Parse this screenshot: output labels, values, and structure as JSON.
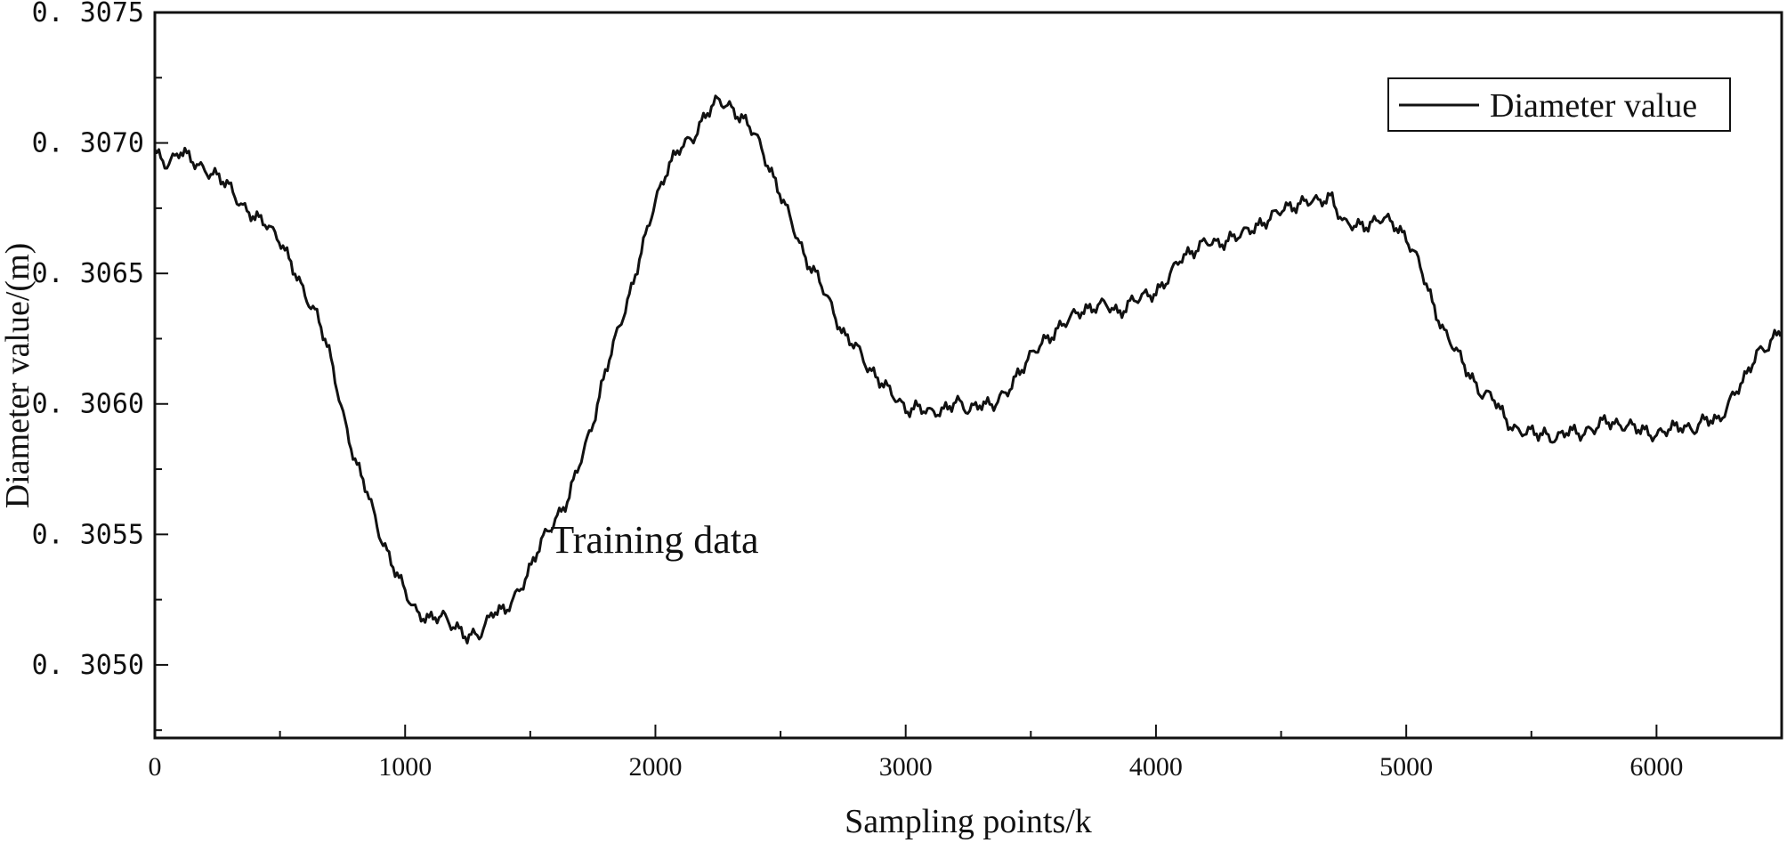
{
  "chart_data": {
    "type": "line",
    "title": "",
    "xlabel": "Sampling points/k",
    "ylabel": "Diameter value/(m)",
    "xlim": [
      0,
      6500
    ],
    "ylim": [
      0.30472,
      0.3075
    ],
    "x_ticks": [
      0,
      1000,
      2000,
      3000,
      4000,
      5000,
      6000
    ],
    "x_tick_labels": [
      "0",
      "1000",
      "2000",
      "3000",
      "4000",
      "5000",
      "6000"
    ],
    "y_ticks": [
      0.305,
      0.3055,
      0.306,
      0.3065,
      0.307,
      0.3075
    ],
    "y_tick_labels": [
      "0. 3050",
      "0. 3055",
      "0. 3060",
      "0. 3065",
      "0. 3070",
      "0. 3075"
    ],
    "legend": {
      "position": "top-right",
      "entries": [
        "Diameter value"
      ]
    },
    "annotations": [
      {
        "text": "Training data",
        "x": 1580,
        "y": 0.30543
      }
    ],
    "grid": false,
    "series": [
      {
        "name": "Diameter value",
        "color": "#111111",
        "x": [
          0,
          50,
          100,
          150,
          200,
          250,
          300,
          350,
          400,
          450,
          500,
          550,
          600,
          650,
          700,
          750,
          800,
          850,
          900,
          950,
          1000,
          1050,
          1100,
          1150,
          1200,
          1250,
          1300,
          1350,
          1400,
          1450,
          1500,
          1550,
          1600,
          1650,
          1700,
          1750,
          1800,
          1850,
          1900,
          1950,
          2000,
          2050,
          2100,
          2150,
          2200,
          2250,
          2300,
          2350,
          2400,
          2450,
          2500,
          2550,
          2600,
          2650,
          2700,
          2750,
          2800,
          2850,
          2900,
          2950,
          3000,
          3050,
          3100,
          3150,
          3200,
          3250,
          3300,
          3350,
          3400,
          3450,
          3500,
          3550,
          3600,
          3650,
          3700,
          3750,
          3800,
          3850,
          3900,
          3950,
          4000,
          4050,
          4100,
          4150,
          4200,
          4250,
          4300,
          4350,
          4400,
          4450,
          4500,
          4550,
          4600,
          4650,
          4700,
          4750,
          4800,
          4850,
          4900,
          4950,
          5000,
          5050,
          5100,
          5150,
          5200,
          5250,
          5300,
          5350,
          5400,
          5450,
          5500,
          5550,
          5600,
          5650,
          5700,
          5750,
          5800,
          5850,
          5900,
          5950,
          6000,
          6050,
          6100,
          6150,
          6200,
          6250,
          6300,
          6350,
          6400,
          6450,
          6500
        ],
        "y": [
          0.30696,
          0.30692,
          0.30697,
          0.30693,
          0.3069,
          0.30687,
          0.30683,
          0.30676,
          0.30671,
          0.30669,
          0.30663,
          0.30652,
          0.30642,
          0.30634,
          0.30618,
          0.30597,
          0.30578,
          0.30566,
          0.3055,
          0.30538,
          0.30528,
          0.3052,
          0.30517,
          0.30519,
          0.30515,
          0.3051,
          0.30512,
          0.30521,
          0.3052,
          0.30528,
          0.30537,
          0.30548,
          0.30556,
          0.30563,
          0.30578,
          0.30593,
          0.30612,
          0.30628,
          0.30643,
          0.3066,
          0.30678,
          0.30691,
          0.30698,
          0.30702,
          0.30711,
          0.30716,
          0.30714,
          0.30709,
          0.30703,
          0.30692,
          0.3068,
          0.30668,
          0.30656,
          0.30648,
          0.30638,
          0.30627,
          0.30622,
          0.30614,
          0.30609,
          0.30603,
          0.30598,
          0.30599,
          0.30596,
          0.30598,
          0.30601,
          0.30597,
          0.30601,
          0.30599,
          0.30604,
          0.30612,
          0.30618,
          0.30624,
          0.30628,
          0.30632,
          0.30636,
          0.30637,
          0.30638,
          0.30635,
          0.30639,
          0.30641,
          0.30643,
          0.30648,
          0.30656,
          0.30659,
          0.30662,
          0.30661,
          0.30664,
          0.30665,
          0.30668,
          0.30671,
          0.30674,
          0.30676,
          0.30678,
          0.30677,
          0.3068,
          0.30669,
          0.30668,
          0.30669,
          0.30671,
          0.30669,
          0.30664,
          0.30654,
          0.3064,
          0.30628,
          0.3062,
          0.30612,
          0.30604,
          0.30602,
          0.30594,
          0.30589,
          0.30589,
          0.30589,
          0.30586,
          0.3059,
          0.30589,
          0.3059,
          0.30594,
          0.30592,
          0.30591,
          0.3059,
          0.30588,
          0.3059,
          0.30592,
          0.3059,
          0.30594,
          0.30594,
          0.30602,
          0.30609,
          0.3062,
          0.30622,
          0.30629
        ]
      }
    ]
  }
}
